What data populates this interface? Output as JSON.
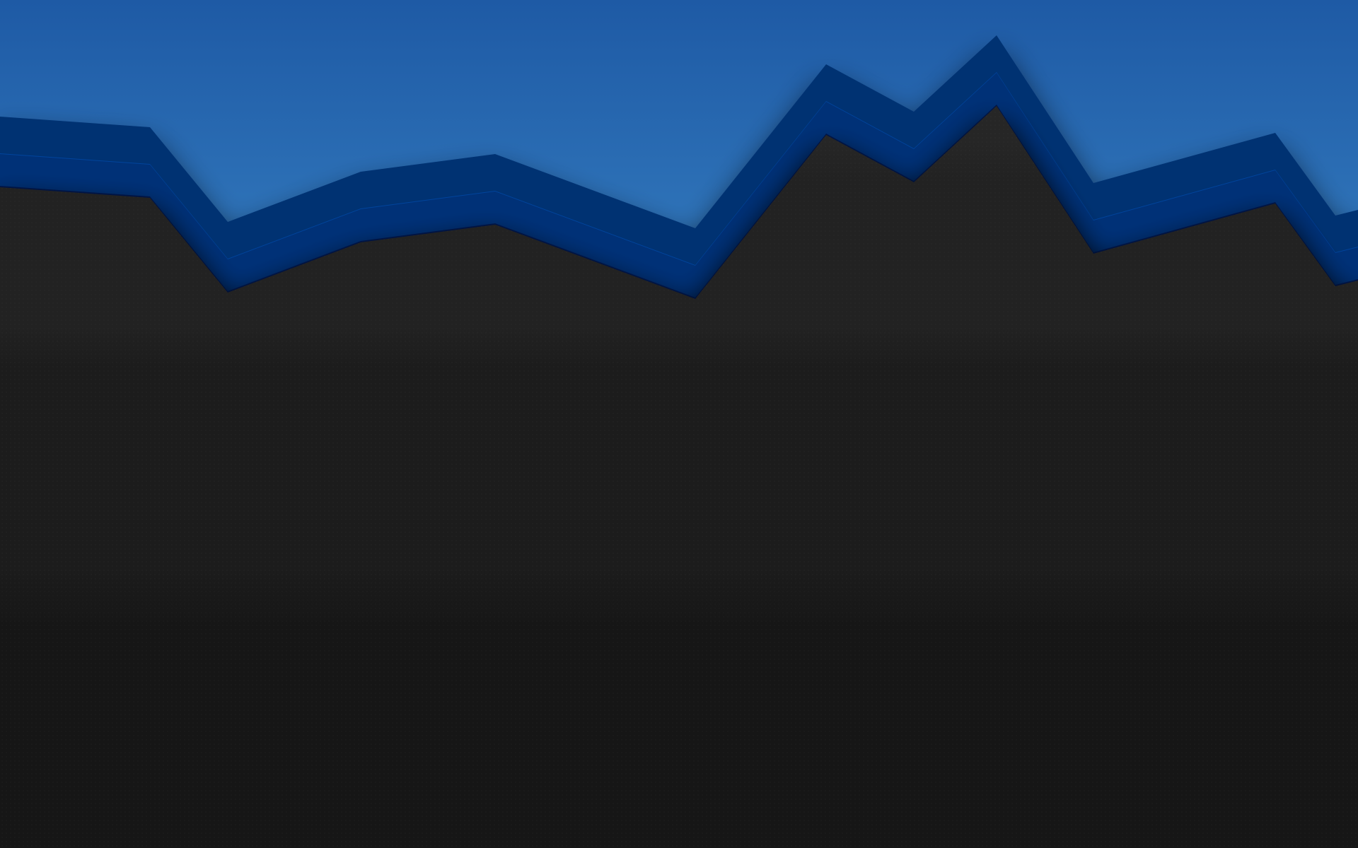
{
  "wallpaper": {
    "sky_gradient": [
      "#1e5aa5",
      "#5cb8ee"
    ],
    "band_colors": [
      "#003272",
      "#00449c",
      "#00225a",
      "#001849"
    ],
    "panel_gradient": [
      "#262626",
      "#1b1b1b",
      "#151515"
    ],
    "shadow_color": "#000000"
  }
}
